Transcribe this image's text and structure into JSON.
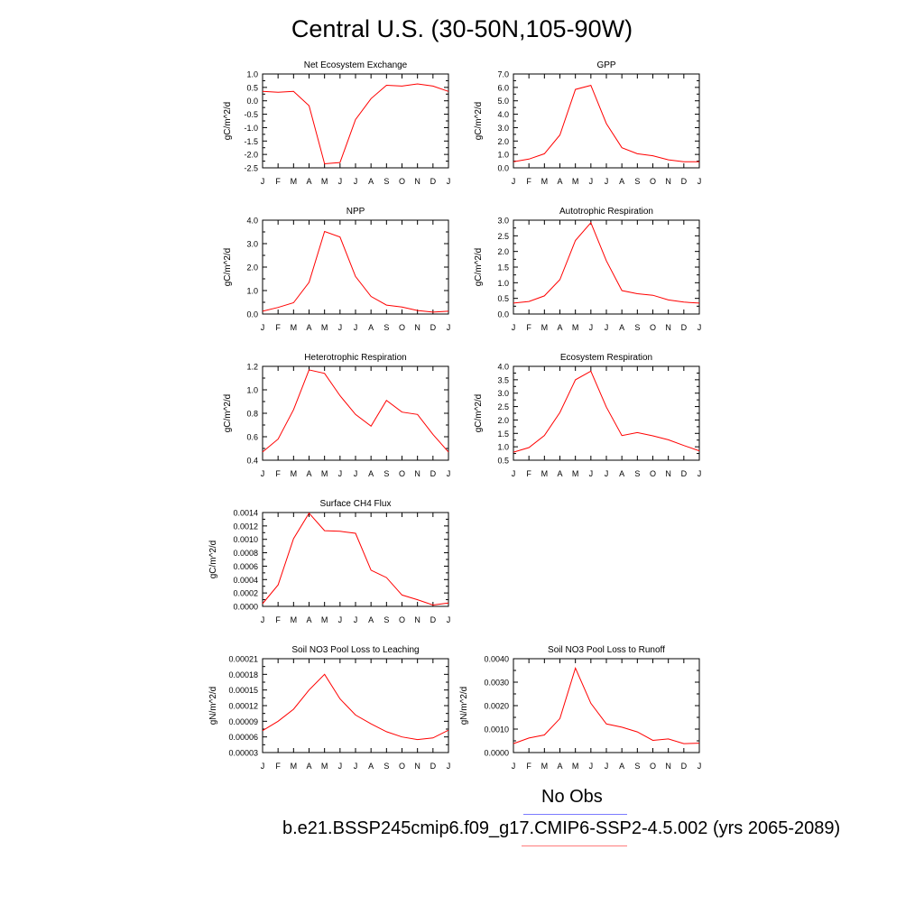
{
  "title": "Central U.S. (30-50N,105-90W)",
  "legend": {
    "obs_label": "No Obs",
    "obs_color": "#7b7bff",
    "case_label": "b.e21.BSSP245cmip6.f09_g17.CMIP6-SSP2-4.5.002 (yrs 2065-2089)",
    "case_color": "#ff7b7b"
  },
  "series_color": "#ff0000",
  "chart_data": [
    {
      "type": "line",
      "title": "Net Ecosystem Exchange",
      "ylabel": "gC/m^2/d",
      "x": [
        "J",
        "F",
        "M",
        "A",
        "M",
        "J",
        "J",
        "A",
        "S",
        "O",
        "N",
        "D",
        "J"
      ],
      "ylim": [
        -2.5,
        1.0
      ],
      "yticks": [
        "1.0",
        "0.5",
        "0.0",
        "-0.5",
        "-1.0",
        "-1.5",
        "-2.0",
        "-2.5"
      ],
      "values": [
        0.35,
        0.32,
        0.35,
        -0.18,
        -2.35,
        -2.3,
        -0.7,
        0.08,
        0.58,
        0.55,
        0.63,
        0.55,
        0.35
      ]
    },
    {
      "type": "line",
      "title": "GPP",
      "ylabel": "gC/m^2/d",
      "x": [
        "J",
        "F",
        "M",
        "A",
        "M",
        "J",
        "J",
        "A",
        "S",
        "O",
        "N",
        "D",
        "J"
      ],
      "ylim": [
        0.0,
        7.0
      ],
      "yticks": [
        "7.0",
        "6.0",
        "5.0",
        "4.0",
        "3.0",
        "2.0",
        "1.0",
        "0.0"
      ],
      "values": [
        0.45,
        0.65,
        1.05,
        2.45,
        5.85,
        6.15,
        3.3,
        1.5,
        1.05,
        0.9,
        0.6,
        0.45,
        0.45
      ]
    },
    {
      "type": "line",
      "title": "NPP",
      "ylabel": "gC/m^2/d",
      "x": [
        "J",
        "F",
        "M",
        "A",
        "M",
        "J",
        "J",
        "A",
        "S",
        "O",
        "N",
        "D",
        "J"
      ],
      "ylim": [
        0.0,
        4.0
      ],
      "yticks": [
        "4.0",
        "3.0",
        "2.0",
        "1.0",
        "0.0"
      ],
      "values": [
        0.12,
        0.28,
        0.48,
        1.35,
        3.52,
        3.28,
        1.6,
        0.75,
        0.38,
        0.3,
        0.15,
        0.08,
        0.12
      ]
    },
    {
      "type": "line",
      "title": "Autotrophic Respiration",
      "ylabel": "gC/m^2/d",
      "x": [
        "J",
        "F",
        "M",
        "A",
        "M",
        "J",
        "J",
        "A",
        "S",
        "O",
        "N",
        "D",
        "J"
      ],
      "ylim": [
        0.0,
        3.0
      ],
      "yticks": [
        "3.0",
        "2.5",
        "2.0",
        "1.5",
        "1.0",
        "0.5",
        "0.0"
      ],
      "values": [
        0.35,
        0.4,
        0.58,
        1.1,
        2.35,
        2.92,
        1.7,
        0.75,
        0.65,
        0.6,
        0.45,
        0.38,
        0.35
      ]
    },
    {
      "type": "line",
      "title": "Heterotrophic Respiration",
      "ylabel": "gC/m^2/d",
      "x": [
        "J",
        "F",
        "M",
        "A",
        "M",
        "J",
        "J",
        "A",
        "S",
        "O",
        "N",
        "D",
        "J"
      ],
      "ylim": [
        0.4,
        1.2
      ],
      "yticks": [
        "1.2",
        "1.0",
        "0.8",
        "0.6",
        "0.4"
      ],
      "values": [
        0.47,
        0.58,
        0.83,
        1.17,
        1.14,
        0.95,
        0.79,
        0.69,
        0.91,
        0.81,
        0.79,
        0.62,
        0.47
      ]
    },
    {
      "type": "line",
      "title": "Ecosystem Respiration",
      "ylabel": "gC/m^2/d",
      "x": [
        "J",
        "F",
        "M",
        "A",
        "M",
        "J",
        "J",
        "A",
        "S",
        "O",
        "N",
        "D",
        "J"
      ],
      "ylim": [
        0.5,
        4.0
      ],
      "yticks": [
        "4.0",
        "3.5",
        "3.0",
        "2.5",
        "2.0",
        "1.5",
        "1.0",
        "0.5"
      ],
      "values": [
        0.8,
        0.97,
        1.42,
        2.28,
        3.5,
        3.82,
        2.48,
        1.42,
        1.53,
        1.41,
        1.26,
        1.05,
        0.85
      ]
    },
    {
      "type": "line",
      "title": "Surface CH4 Flux",
      "ylabel": "gC/m^2/d",
      "x": [
        "J",
        "F",
        "M",
        "A",
        "M",
        "J",
        "J",
        "A",
        "S",
        "O",
        "N",
        "D",
        "J"
      ],
      "ylim": [
        0.0,
        0.0014
      ],
      "yticks": [
        "0.0014",
        "0.0012",
        "0.0010",
        "0.0008",
        "0.0006",
        "0.0004",
        "0.0002",
        "0.0000"
      ],
      "values": [
        4e-05,
        0.00032,
        0.00101,
        0.00139,
        0.00113,
        0.00112,
        0.00109,
        0.00054,
        0.00043,
        0.00017,
        0.0001,
        2e-05,
        5e-05
      ]
    },
    {
      "type": "line",
      "title": "Soil NO3 Pool Loss to Leaching",
      "ylabel": "gN/m^2/d",
      "x": [
        "J",
        "F",
        "M",
        "A",
        "M",
        "J",
        "J",
        "A",
        "S",
        "O",
        "N",
        "D",
        "J"
      ],
      "ylim": [
        3e-05,
        0.00021
      ],
      "yticks": [
        "0.00021",
        "0.00018",
        "0.00015",
        "0.00012",
        "0.00009",
        "0.00006",
        "0.00003"
      ],
      "values": [
        7.2e-05,
        9e-05,
        0.000113,
        0.00015,
        0.00018,
        0.000133,
        0.000102,
        8.5e-05,
        7e-05,
        6e-05,
        5.5e-05,
        5.8e-05,
        7.3e-05
      ]
    },
    {
      "type": "line",
      "title": "Soil NO3 Pool Loss to Runoff",
      "ylabel": "gN/m^2/d",
      "x": [
        "J",
        "F",
        "M",
        "A",
        "M",
        "J",
        "J",
        "A",
        "S",
        "O",
        "N",
        "D",
        "J"
      ],
      "ylim": [
        0.0,
        0.004
      ],
      "yticks": [
        "0.0040",
        "0.0030",
        "0.0020",
        "0.0010",
        "0.0000"
      ],
      "values": [
        0.00038,
        0.00062,
        0.00075,
        0.00145,
        0.0036,
        0.0021,
        0.00122,
        0.00108,
        0.00088,
        0.00052,
        0.00058,
        0.00038,
        0.0004
      ]
    }
  ]
}
